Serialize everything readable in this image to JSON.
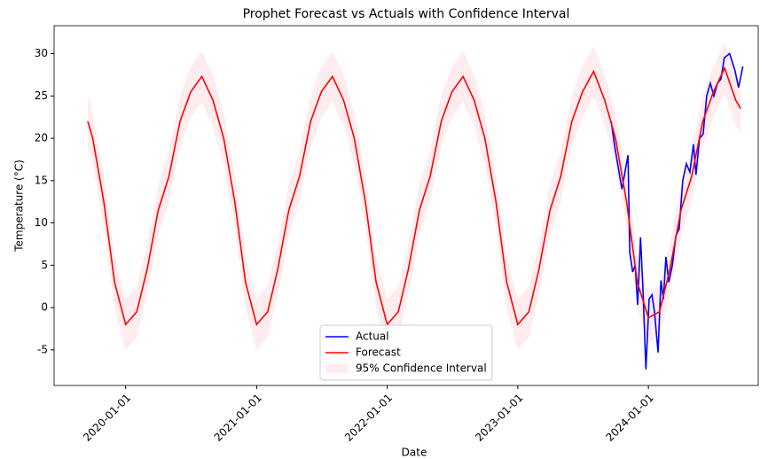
{
  "chart_data": {
    "type": "line",
    "title": "Prophet Forecast vs Actuals with Confidence Interval",
    "xlabel": "Date",
    "ylabel": "Temperature (°C)",
    "xlim": [
      "2019-06-15",
      "2024-11-03"
    ],
    "xticks": [
      "2020-01-01",
      "2021-01-01",
      "2022-01-01",
      "2023-01-01",
      "2024-01-01"
    ],
    "ylim": [
      -9.2,
      33.3
    ],
    "yticks": [
      -5,
      0,
      5,
      10,
      15,
      20,
      25,
      30
    ],
    "legend": "lower center",
    "series": [
      {
        "name": "Actual",
        "color": "#0000ff",
        "x": [
          "2023-09-19",
          "2023-09-29",
          "2023-10-09",
          "2023-10-19",
          "2023-11-05",
          "2023-11-10",
          "2023-11-18",
          "2023-11-25",
          "2023-12-02",
          "2023-12-10",
          "2023-12-17",
          "2023-12-25",
          "2024-01-03",
          "2024-01-11",
          "2024-01-18",
          "2024-01-28",
          "2024-02-05",
          "2024-02-12",
          "2024-02-19",
          "2024-02-27",
          "2024-03-08",
          "2024-03-18",
          "2024-03-27",
          "2024-04-06",
          "2024-04-16",
          "2024-04-26",
          "2024-05-06",
          "2024-05-13",
          "2024-05-23",
          "2024-06-02",
          "2024-06-12",
          "2024-06-22",
          "2024-07-02",
          "2024-07-12",
          "2024-07-22",
          "2024-07-31",
          "2024-08-15",
          "2024-08-30",
          "2024-09-09",
          "2024-09-21"
        ],
        "values": [
          22,
          19,
          16.5,
          14,
          18,
          6.5,
          4.2,
          5,
          0.3,
          8.3,
          2,
          -7.3,
          1,
          1.5,
          -0.5,
          -5.3,
          3.2,
          1,
          6,
          3,
          5,
          8.5,
          9.3,
          15,
          17,
          16,
          19.3,
          15.7,
          20,
          20.5,
          25,
          26.5,
          25,
          26.5,
          27,
          29.5,
          30,
          28,
          26,
          28.5
        ]
      },
      {
        "name": "Forecast",
        "color": "#ff0000",
        "x": [
          "2019-09-17",
          "2019-10-01",
          "2019-11-01",
          "2019-12-01",
          "2020-01-01",
          "2020-02-01",
          "2020-03-01",
          "2020-04-01",
          "2020-05-01",
          "2020-06-01",
          "2020-07-01",
          "2020-08-01",
          "2020-09-01",
          "2020-10-01",
          "2020-11-01",
          "2020-12-01",
          "2021-01-01",
          "2021-02-01",
          "2021-03-01",
          "2021-04-01",
          "2021-05-01",
          "2021-06-01",
          "2021-07-01",
          "2021-08-01",
          "2021-09-01",
          "2021-10-01",
          "2021-11-01",
          "2021-12-01",
          "2022-01-01",
          "2022-02-01",
          "2022-03-01",
          "2022-04-01",
          "2022-05-01",
          "2022-06-01",
          "2022-07-01",
          "2022-08-01",
          "2022-09-01",
          "2022-10-01",
          "2022-11-01",
          "2022-12-01",
          "2023-01-01",
          "2023-02-01",
          "2023-03-01",
          "2023-04-01",
          "2023-05-01",
          "2023-06-01",
          "2023-07-01",
          "2023-08-01",
          "2023-09-01",
          "2023-10-01",
          "2023-11-01",
          "2023-12-01",
          "2024-01-01",
          "2024-02-01",
          "2024-03-01",
          "2024-04-01",
          "2024-05-01",
          "2024-06-01",
          "2024-07-01",
          "2024-08-01",
          "2024-09-01",
          "2024-09-15"
        ],
        "values": [
          22,
          20,
          12.5,
          3,
          -2,
          -0.5,
          4.5,
          11.5,
          15.5,
          22,
          25.5,
          27.3,
          24.5,
          20,
          12.5,
          3,
          -2,
          -0.5,
          4.5,
          11.5,
          15.5,
          22,
          25.5,
          27.3,
          24.5,
          20,
          12.5,
          3,
          -2,
          -0.5,
          4.5,
          11.5,
          15.5,
          22,
          25.5,
          27.3,
          24.5,
          20,
          12.5,
          3,
          -2,
          -0.5,
          4.5,
          11.5,
          15.5,
          22,
          25.5,
          27.9,
          24.5,
          20,
          12.5,
          3,
          -1.2,
          -0.5,
          4.5,
          11.5,
          15.5,
          22,
          25.5,
          28.3,
          24.5,
          23.5
        ]
      }
    ],
    "band": {
      "name": "95% Confidence Interval",
      "color": "#ffc0cb",
      "alpha": 0.3,
      "of": 1,
      "lower": [
        19,
        17,
        9.5,
        0,
        -5,
        -3.5,
        1.5,
        8.5,
        12.5,
        19,
        22.5,
        24.3,
        21.5,
        17,
        9.5,
        0,
        -5,
        -3.5,
        1.5,
        8.5,
        12.5,
        19,
        22.5,
        24.3,
        21.5,
        17,
        9.5,
        0,
        -5,
        -3.5,
        1.5,
        8.5,
        12.5,
        19,
        22.5,
        24.3,
        21.5,
        17,
        9.5,
        0,
        -5,
        -3.5,
        1.5,
        8.5,
        12.5,
        19,
        22.5,
        24.9,
        21.5,
        17,
        9.5,
        0,
        -4.2,
        -3.5,
        1.5,
        8.5,
        12.5,
        19,
        22.5,
        25.3,
        21.5,
        20.5
      ],
      "upper": [
        25,
        23,
        15.5,
        6,
        1,
        2.5,
        7.5,
        14.5,
        18.5,
        25,
        28.5,
        30.3,
        27.5,
        23,
        15.5,
        6,
        1,
        2.5,
        7.5,
        14.5,
        18.5,
        25,
        28.5,
        30.3,
        27.5,
        23,
        15.5,
        6,
        1,
        2.5,
        7.5,
        14.5,
        18.5,
        25,
        28.5,
        30.3,
        27.5,
        23,
        15.5,
        6,
        1,
        2.5,
        7.5,
        14.5,
        18.5,
        25,
        28.5,
        30.9,
        27.5,
        23,
        15.5,
        6,
        1.8,
        2.5,
        7.5,
        14.5,
        18.5,
        25,
        28.5,
        31.3,
        27.5,
        26.5
      ]
    }
  }
}
